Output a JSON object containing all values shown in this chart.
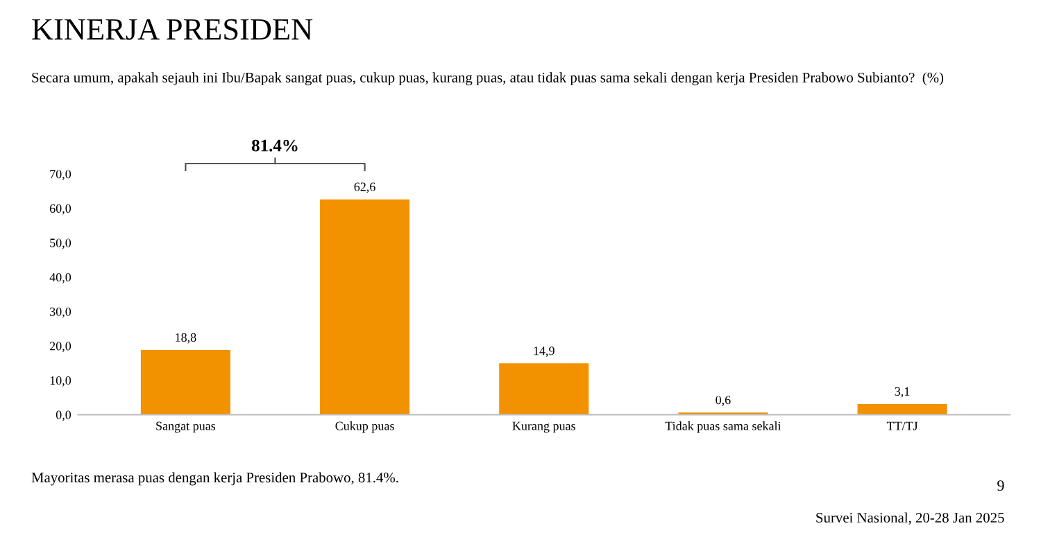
{
  "chart_data": {
    "type": "bar",
    "title": "KINERJA PRESIDEN",
    "subtitle": "Secara umum, apakah sejauh ini Ibu/Bapak sangat puas, cukup puas, kurang puas, atau tidak puas sama sekali dengan kerja Presiden Prabowo Subianto?  (%)",
    "categories": [
      "Sangat puas",
      "Cukup puas",
      "Kurang puas",
      "Tidak puas sama sekali",
      "TT/TJ"
    ],
    "values": [
      18.8,
      62.6,
      14.9,
      0.6,
      3.1
    ],
    "value_labels": [
      "18,8",
      "62,6",
      "14,9",
      "0,6",
      "3,1"
    ],
    "color": "#f39200",
    "ylim": [
      0,
      70
    ],
    "yticks": [
      {
        "value": 0,
        "label": "0,0"
      },
      {
        "value": 10,
        "label": "10,0"
      },
      {
        "value": 20,
        "label": "20,0"
      },
      {
        "value": 30,
        "label": "30,0"
      },
      {
        "value": 40,
        "label": "40,0"
      },
      {
        "value": 50,
        "label": "50,0"
      },
      {
        "value": 60,
        "label": "60,0"
      },
      {
        "value": 70,
        "label": "70,0"
      }
    ],
    "grid": false,
    "annotations": [
      "81.4%",
      "Mayoritas merasa puas dengan kerja Presiden Prabowo, 81.4%.",
      "9",
      "Survei Nasional, 20-28 Jan 2025"
    ]
  }
}
